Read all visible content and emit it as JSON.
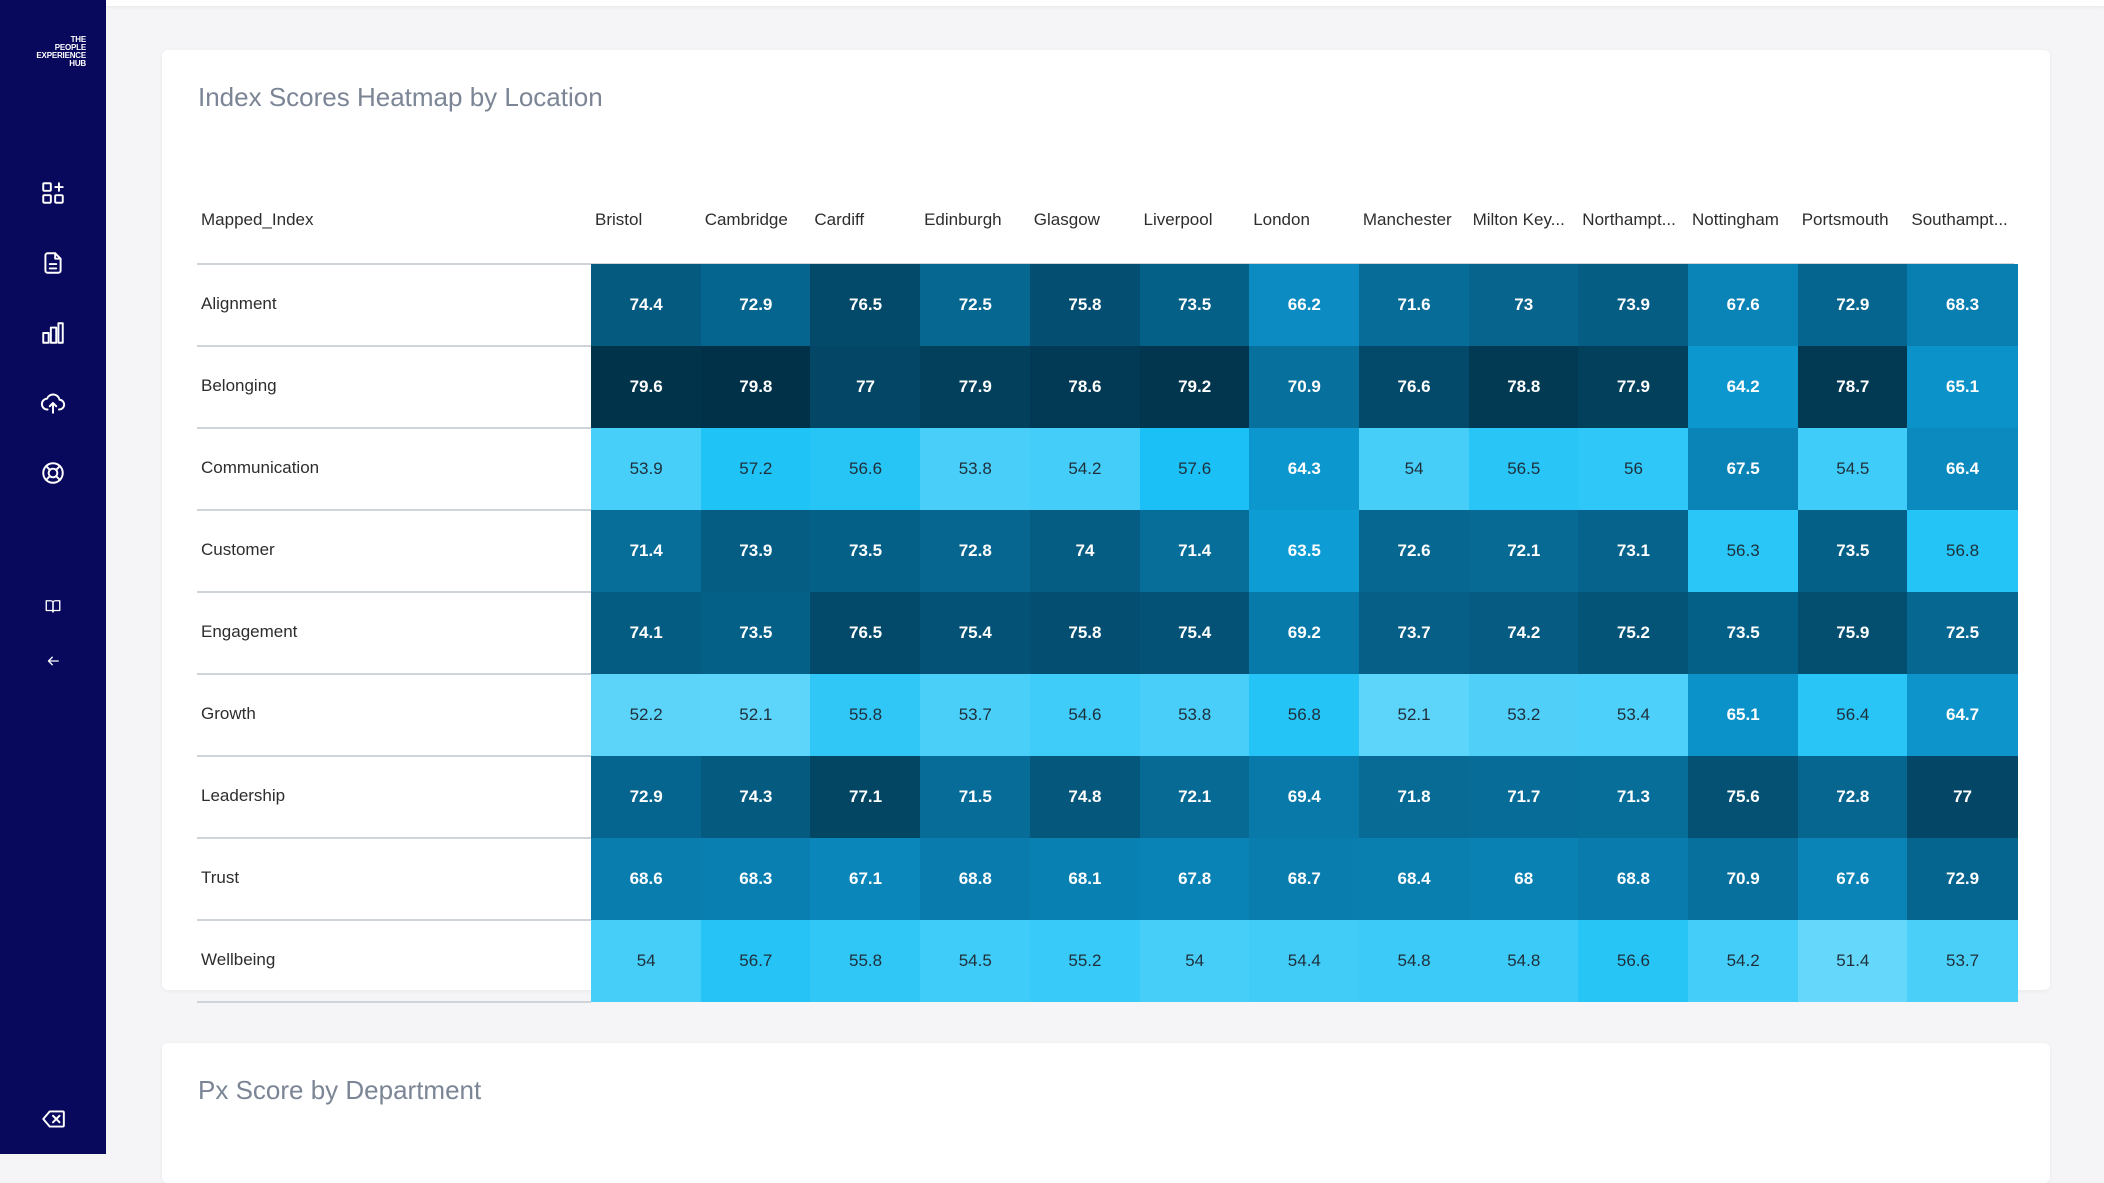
{
  "app": {
    "logo_lines": [
      "THE",
      "PEOPLE",
      "EXPERIENCE",
      "HUB"
    ]
  },
  "sidebar": {
    "items": [
      {
        "icon": "dashboard-icon"
      },
      {
        "icon": "document-icon"
      },
      {
        "icon": "bar-chart-icon"
      },
      {
        "icon": "cloud-upload-icon"
      },
      {
        "icon": "lifebuoy-icon"
      },
      {
        "icon": "book-icon"
      },
      {
        "icon": "arrow-left-icon"
      },
      {
        "icon": "backspace-icon"
      }
    ],
    "background": "#08085c"
  },
  "heatmap_card": {
    "title": "Index Scores Heatmap by Location",
    "row_header": "Mapped_Index"
  },
  "department_card": {
    "title": "Px Score by Department"
  },
  "chart_data": {
    "type": "heatmap",
    "title": "Index Scores Heatmap by Location",
    "columns": [
      "Bristol",
      "Cambridge",
      "Cardiff",
      "Edinburgh",
      "Glasgow",
      "Liverpool",
      "London",
      "Manchester",
      "Milton Key...",
      "Northampt...",
      "Nottingham",
      "Portsmouth",
      "Southampt..."
    ],
    "rows": [
      "Alignment",
      "Belonging",
      "Communication",
      "Customer",
      "Engagement",
      "Growth",
      "Leadership",
      "Trust",
      "Wellbeing"
    ],
    "values": [
      [
        74.4,
        72.9,
        76.5,
        72.5,
        75.8,
        73.5,
        66.2,
        71.6,
        73,
        73.9,
        67.6,
        72.9,
        68.3
      ],
      [
        79.6,
        79.8,
        77,
        77.9,
        78.6,
        79.2,
        70.9,
        76.6,
        78.8,
        77.9,
        64.2,
        78.7,
        65.1
      ],
      [
        53.9,
        57.2,
        56.6,
        53.8,
        54.2,
        57.6,
        64.3,
        54,
        56.5,
        56,
        67.5,
        54.5,
        66.4
      ],
      [
        71.4,
        73.9,
        73.5,
        72.8,
        74,
        71.4,
        63.5,
        72.6,
        72.1,
        73.1,
        56.3,
        73.5,
        56.8
      ],
      [
        74.1,
        73.5,
        76.5,
        75.4,
        75.8,
        75.4,
        69.2,
        73.7,
        74.2,
        75.2,
        73.5,
        75.9,
        72.5
      ],
      [
        52.2,
        52.1,
        55.8,
        53.7,
        54.6,
        53.8,
        56.8,
        52.1,
        53.2,
        53.4,
        65.1,
        56.4,
        64.7
      ],
      [
        72.9,
        74.3,
        77.1,
        71.5,
        74.8,
        72.1,
        69.4,
        71.8,
        71.7,
        71.3,
        75.6,
        72.8,
        77
      ],
      [
        68.6,
        68.3,
        67.1,
        68.8,
        68.1,
        67.8,
        68.7,
        68.4,
        68,
        68.8,
        70.9,
        67.6,
        72.9
      ],
      [
        54,
        56.7,
        55.8,
        54.5,
        55.2,
        54,
        54.4,
        54.8,
        54.8,
        56.6,
        54.2,
        51.4,
        53.7
      ]
    ],
    "color_scale": [
      "#6ad8fb",
      "#13bff5",
      "#0b8fc6",
      "#06668f",
      "#013047"
    ]
  }
}
